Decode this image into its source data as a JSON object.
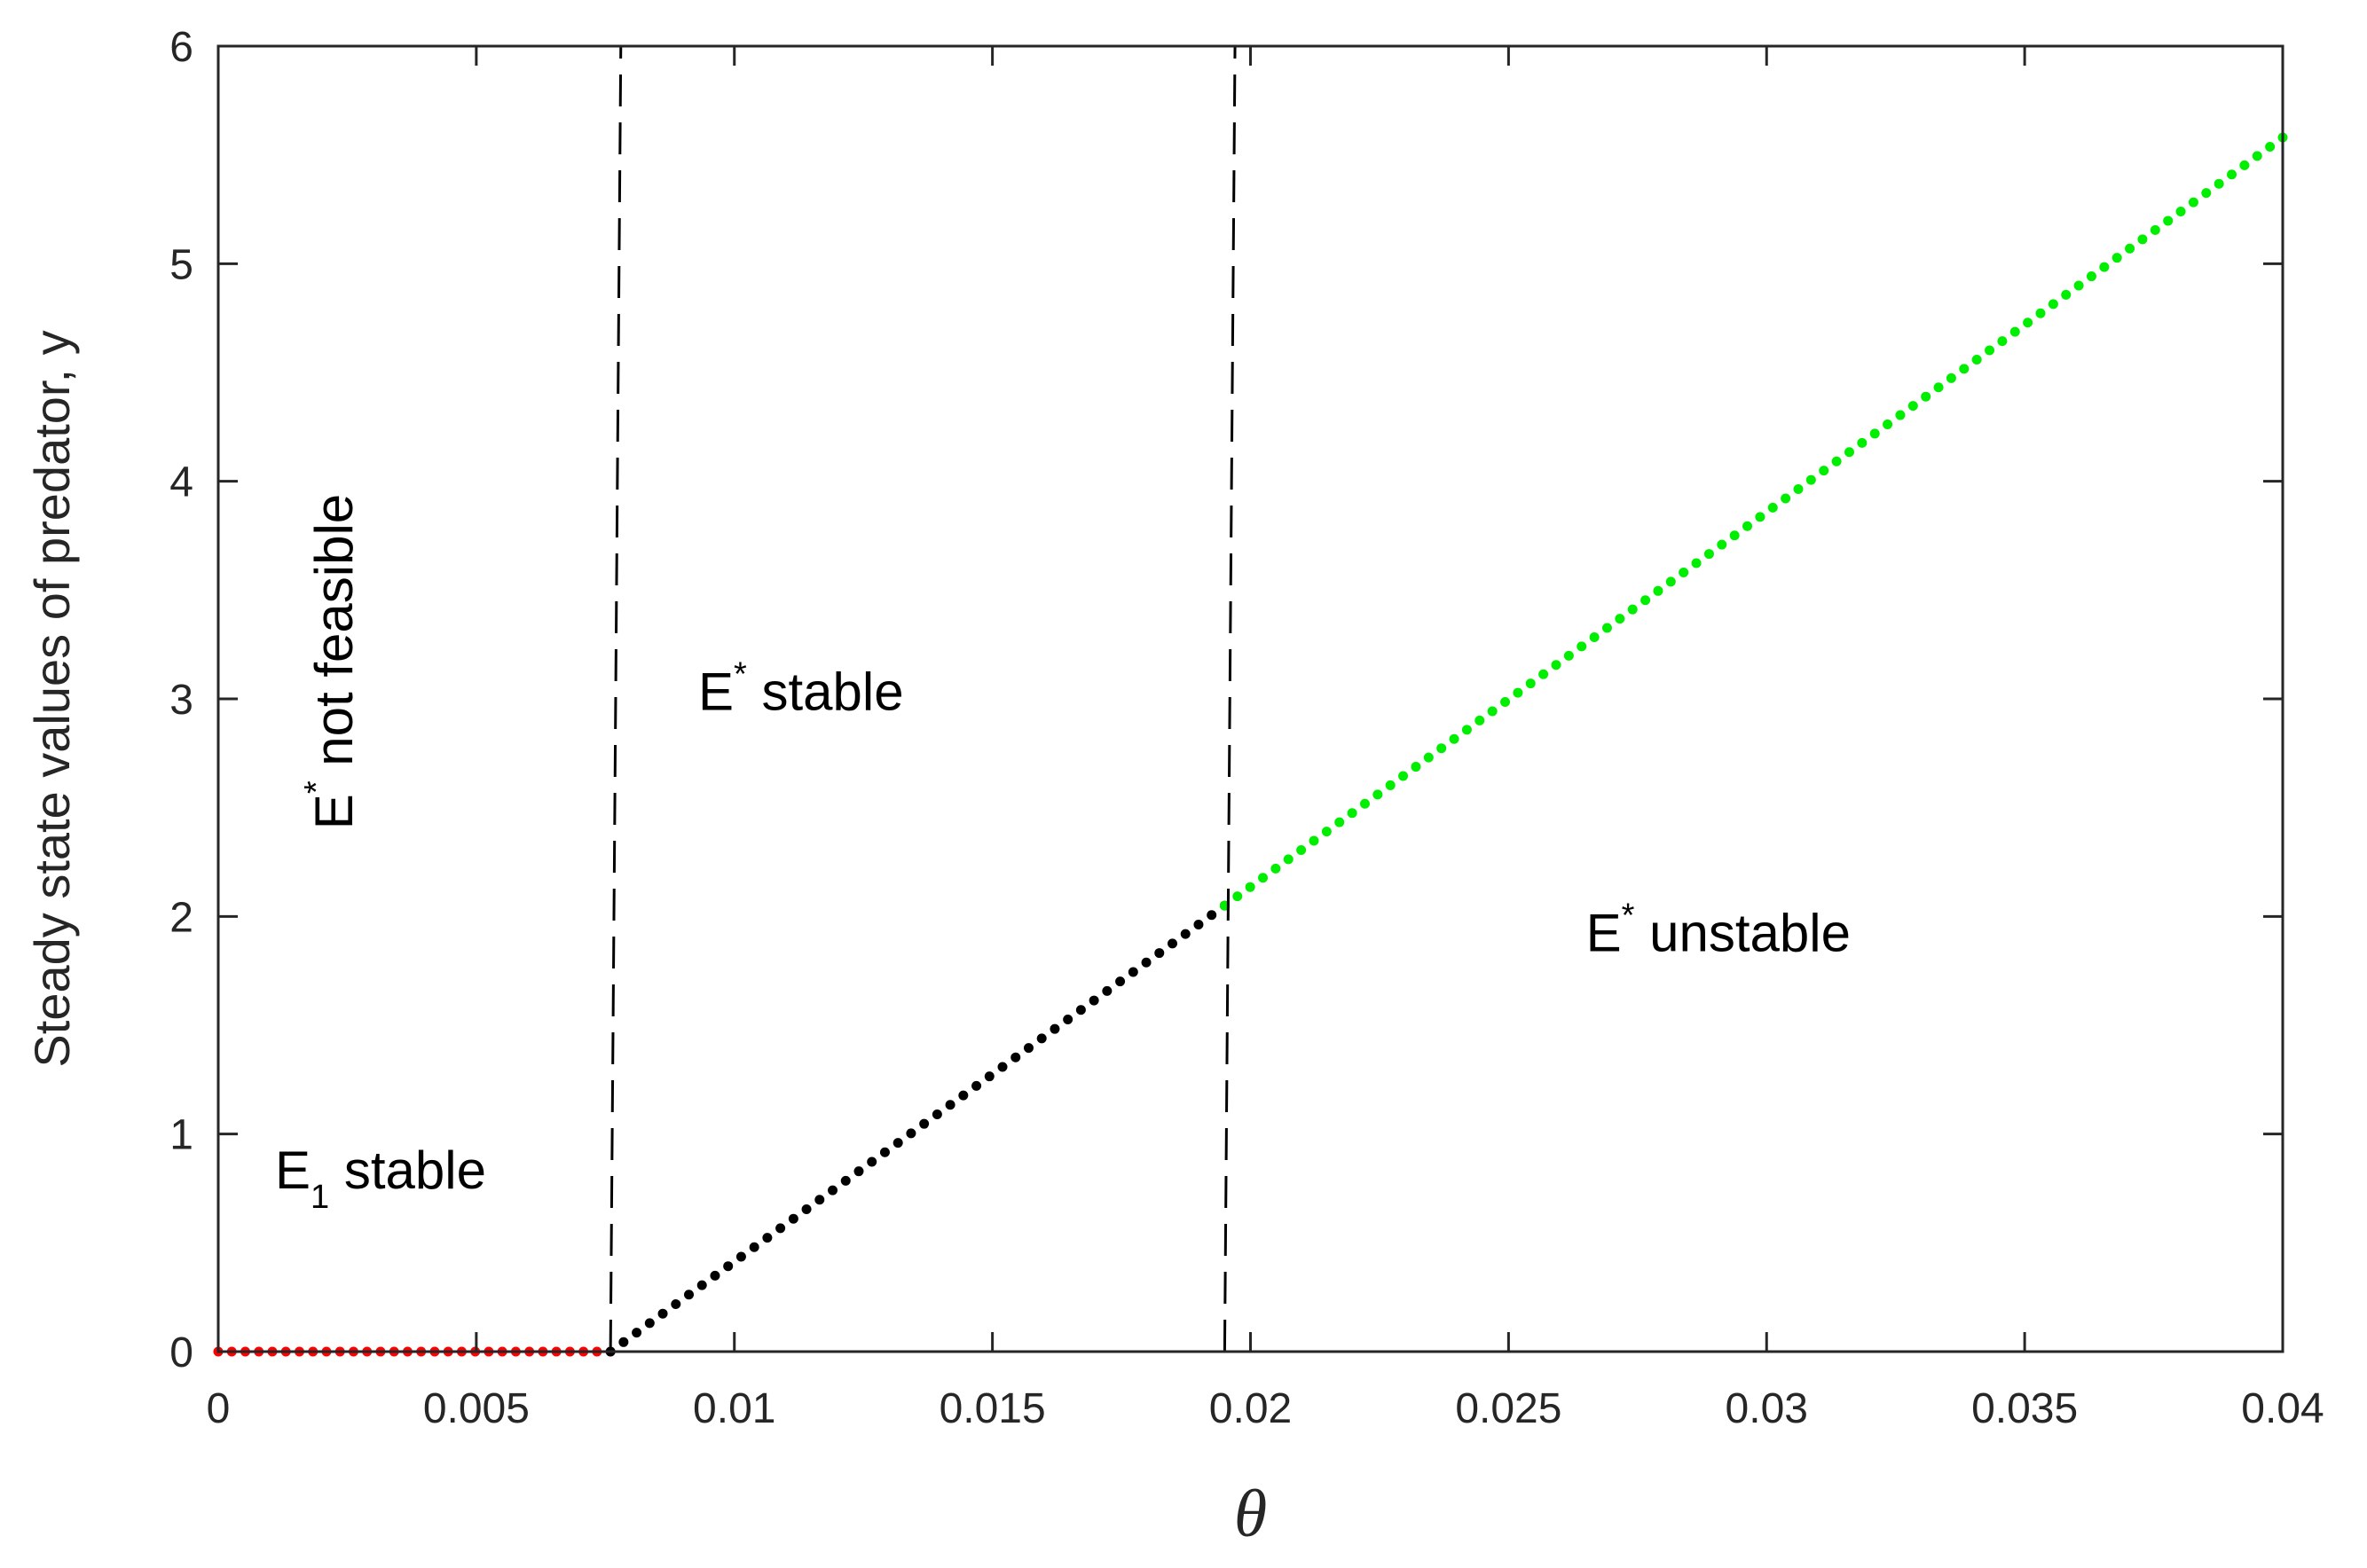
{
  "chart_data": {
    "type": "scatter",
    "title": "",
    "xlabel": "θ",
    "ylabel": "Steady state values of predator, y",
    "xlim": [
      0,
      0.04
    ],
    "ylim": [
      0,
      6
    ],
    "xticks": [
      0,
      0.005,
      0.01,
      0.015,
      0.02,
      0.025,
      0.03,
      0.035,
      0.04
    ],
    "xtick_labels": [
      "0",
      "0.005",
      "0.01",
      "0.015",
      "0.02",
      "0.025",
      "0.03",
      "0.035",
      "0.04"
    ],
    "yticks": [
      0,
      1,
      2,
      3,
      4,
      5,
      6
    ],
    "ytick_labels": [
      "0",
      "1",
      "2",
      "3",
      "4",
      "5",
      "6"
    ],
    "grid": false,
    "colors": {
      "E1_stable": "#ff0000",
      "Estar_stable": "#000000",
      "Estar_unstable": "#00ee00",
      "axis": "#262626"
    },
    "series": [
      {
        "key": "E1_stable",
        "x_range": [
          0,
          0.0076
        ],
        "y": [
          0,
          0
        ],
        "points": 30
      },
      {
        "key": "Estar_stable",
        "x_range": [
          0.0076,
          0.0195
        ],
        "y": [
          0,
          2.05
        ],
        "points": 48
      },
      {
        "key": "Estar_unstable",
        "x_range": [
          0.0195,
          0.04
        ],
        "y": [
          2.05,
          5.58
        ],
        "points": 84
      }
    ],
    "vlines": [
      {
        "x_bottom": 0.0076,
        "x_top": 0.0078,
        "style": "dashed"
      },
      {
        "x_bottom": 0.0195,
        "x_top": 0.0197,
        "style": "dashed"
      }
    ],
    "annotations": [
      {
        "id": "e1-stable",
        "base": "E",
        "sub": "1",
        "sup": "",
        "rest": " stable",
        "x": 0.0011,
        "y": 0.75,
        "rotate": 0
      },
      {
        "id": "estar-not-feasible",
        "base": "E",
        "sub": "",
        "sup": "*",
        "rest": " not feasible",
        "x": 0.0026,
        "y": 2.4,
        "rotate": -90
      },
      {
        "id": "estar-stable",
        "base": "E",
        "sub": "",
        "sup": "*",
        "rest": " stable",
        "x": 0.0093,
        "y": 2.95,
        "rotate": 0
      },
      {
        "id": "estar-unstable",
        "base": "E",
        "sub": "",
        "sup": "*",
        "rest": " unstable",
        "x": 0.0265,
        "y": 1.84,
        "rotate": 0
      }
    ]
  }
}
